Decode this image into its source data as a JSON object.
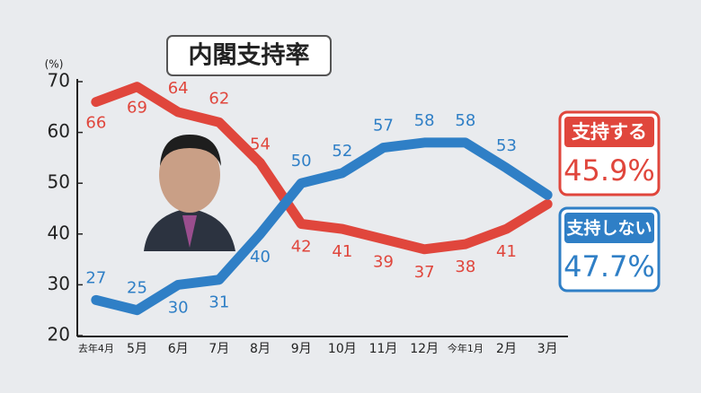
{
  "chart_data": {
    "type": "line",
    "title": "内閣支持率",
    "y_label": "(%)",
    "categories": [
      "去年4月",
      "5月",
      "6月",
      "7月",
      "8月",
      "9月",
      "10月",
      "11月",
      "12月",
      "今年1月",
      "2月",
      "3月"
    ],
    "series": [
      {
        "name": "支持する",
        "color": "#e0463c",
        "values": [
          66,
          69,
          64,
          62,
          54,
          42,
          41,
          39,
          37,
          38,
          41,
          45.9
        ],
        "value_labels": [
          "66",
          "69",
          "64",
          "62",
          "54",
          "42",
          "41",
          "39",
          "37",
          "38",
          "41",
          "45.9%"
        ]
      },
      {
        "name": "支持しない",
        "color": "#2f7fc6",
        "values": [
          27,
          25,
          30,
          31,
          40,
          50,
          52,
          57,
          58,
          58,
          53,
          47.7
        ],
        "value_labels": [
          "27",
          "25",
          "30",
          "31",
          "40",
          "50",
          "52",
          "57",
          "58",
          "58",
          "53",
          "47.7%"
        ]
      }
    ],
    "ylim": [
      20,
      70
    ],
    "yticks": [
      20,
      30,
      40,
      50,
      60,
      70
    ]
  }
}
